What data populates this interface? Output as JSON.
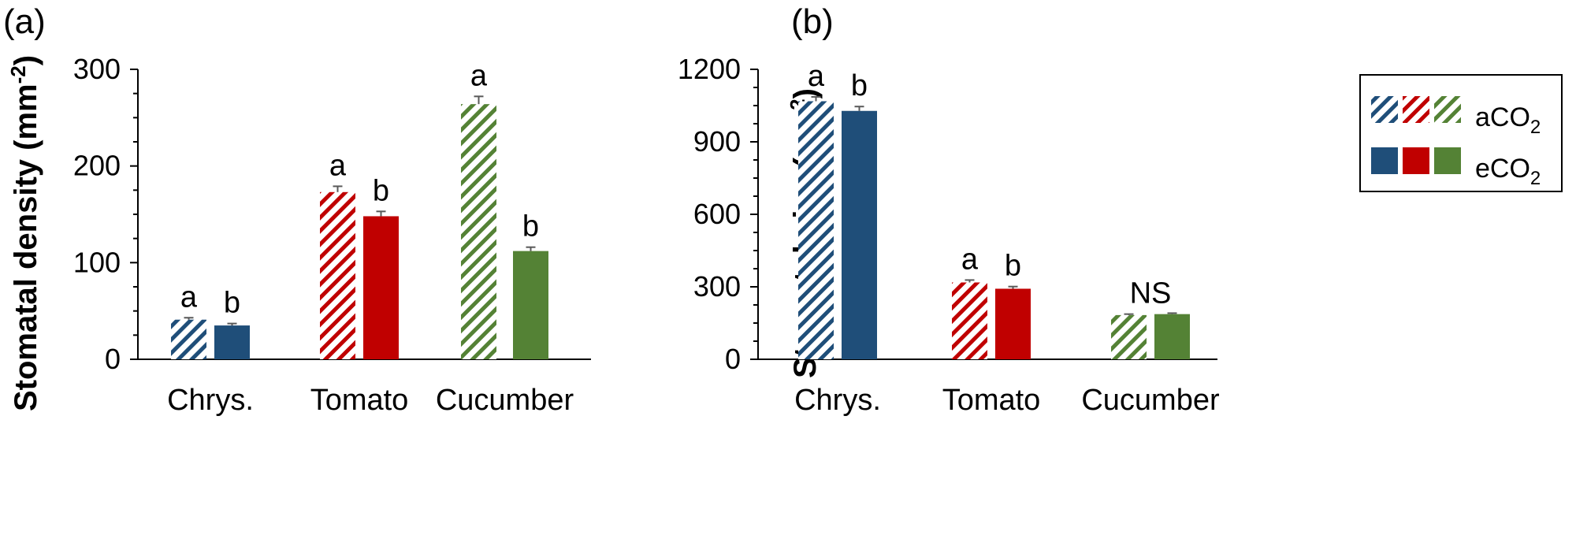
{
  "panels": [
    {
      "label": "(a)"
    },
    {
      "label": "(b)"
    }
  ],
  "legend": {
    "ambient_label": "aCO",
    "ambient_sub": "2",
    "elevated_label": "eCO",
    "elevated_sub": "2"
  },
  "colors": {
    "Chrys.": "#1f4e79",
    "Tomato": "#c00000",
    "Cucumber": "#548235",
    "axis": "#000000",
    "error_bar": "#595959"
  },
  "chart_data": [
    {
      "type": "bar",
      "panel": "(a)",
      "categories": [
        "Chrys.",
        "Tomato",
        "Cucumber"
      ],
      "ylabel": "Stomatal density (mm",
      "ylabel_sup": "-2",
      "ylabel_tail": ")",
      "xlabel": "",
      "ylim": [
        0,
        300
      ],
      "yticks": [
        0,
        100,
        200,
        300
      ],
      "grid": false,
      "series": [
        {
          "name": "aCO2",
          "pattern": "hatched",
          "values": [
            41,
            173,
            264
          ],
          "errors": [
            2,
            6,
            8
          ],
          "sig": [
            "a",
            "a",
            "a"
          ]
        },
        {
          "name": "eCO2",
          "pattern": "solid",
          "values": [
            35,
            148,
            112
          ],
          "errors": [
            2,
            5,
            4
          ],
          "sig": [
            "b",
            "b",
            "b"
          ]
        }
      ]
    },
    {
      "type": "bar",
      "panel": "(b)",
      "categories": [
        "Chrys.",
        "Tomato",
        "Cucumber"
      ],
      "ylabel": "Stomatal size (μm",
      "ylabel_sup": "2",
      "ylabel_tail": ")",
      "xlabel": "",
      "ylim": [
        0,
        1200
      ],
      "yticks": [
        0,
        300,
        600,
        900,
        1200
      ],
      "grid": false,
      "legend_position": "top-right",
      "series": [
        {
          "name": "aCO2",
          "pattern": "hatched",
          "values": [
            1068,
            318,
            183
          ],
          "errors": [
            18,
            10,
            4
          ],
          "sig": [
            "a",
            "a",
            "NS"
          ]
        },
        {
          "name": "eCO2",
          "pattern": "solid",
          "values": [
            1028,
            292,
            187
          ],
          "errors": [
            18,
            9,
            4
          ],
          "sig": [
            "b",
            "b",
            ""
          ]
        }
      ]
    }
  ]
}
